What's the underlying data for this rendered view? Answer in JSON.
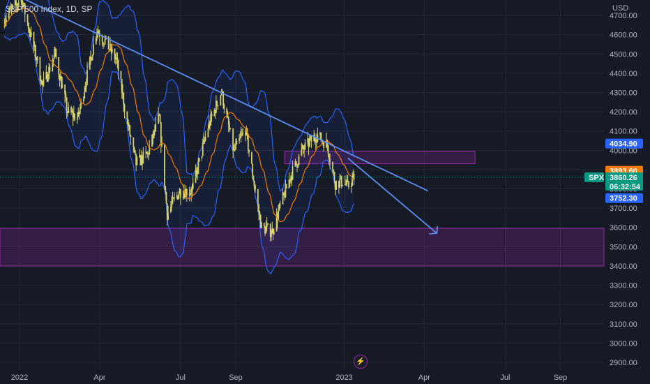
{
  "chart_data": {
    "type": "candlestick",
    "title": "S&P 500 Index, 1D, SP",
    "currency": "USD",
    "symbol": "SPX",
    "price_axis": {
      "ticks": [
        "4700.00",
        "4600.00",
        "4500.00",
        "4400.00",
        "4300.00",
        "4200.00",
        "4100.00",
        "4000.00",
        "3900.00",
        "3800.00",
        "3700.00",
        "3600.00",
        "3500.00",
        "3400.00",
        "3300.00",
        "3200.00",
        "3100.00",
        "3000.00",
        "2900.00"
      ],
      "range": [
        2860,
        4780
      ]
    },
    "time_axis": {
      "ticks": [
        "2022",
        "Apr",
        "Jul",
        "Sep",
        "2023",
        "Apr",
        "Jul",
        "Sep"
      ],
      "tick_dates": [
        "2022-01-01",
        "2022-04-01",
        "2022-07-01",
        "2022-09-01",
        "2023-01-01",
        "2023-04-01",
        "2023-07-01",
        "2023-09-01"
      ],
      "range": [
        "2021-12-10",
        "2023-10-20"
      ]
    },
    "price_series": [
      [
        "2021-12-15",
        4680
      ],
      [
        "2022-01-03",
        4790
      ],
      [
        "2022-01-20",
        4480
      ],
      [
        "2022-01-27",
        4330
      ],
      [
        "2022-02-10",
        4500
      ],
      [
        "2022-02-24",
        4200
      ],
      [
        "2022-03-08",
        4170
      ],
      [
        "2022-03-29",
        4630
      ],
      [
        "2022-04-20",
        4470
      ],
      [
        "2022-05-02",
        4150
      ],
      [
        "2022-05-12",
        3930
      ],
      [
        "2022-05-25",
        3980
      ],
      [
        "2022-06-07",
        4170
      ],
      [
        "2022-06-16",
        3670
      ],
      [
        "2022-06-30",
        3790
      ],
      [
        "2022-07-14",
        3790
      ],
      [
        "2022-08-01",
        4120
      ],
      [
        "2022-08-16",
        4305
      ],
      [
        "2022-08-30",
        3990
      ],
      [
        "2022-09-12",
        4110
      ],
      [
        "2022-09-30",
        3600
      ],
      [
        "2022-10-12",
        3580
      ],
      [
        "2022-11-01",
        3860
      ],
      [
        "2022-11-15",
        4000
      ],
      [
        "2022-12-01",
        4080
      ],
      [
        "2022-12-13",
        4030
      ],
      [
        "2022-12-22",
        3830
      ],
      [
        "2022-12-30",
        3840
      ],
      [
        "2023-01-05",
        3810
      ],
      [
        "2023-01-12",
        3860
      ]
    ],
    "price_labels": {
      "upper_band": "4034.90",
      "moving_average": "3893.60",
      "last_price": "3860.26",
      "countdown": "06:32:54",
      "lower_band": "3752.30"
    },
    "trendline": {
      "from": [
        "2022-01-04",
        4790
      ],
      "to": [
        "2023-04-05",
        3790
      ]
    },
    "projection_arrow": {
      "from": [
        "2023-01-05",
        3960
      ],
      "to": [
        "2023-04-15",
        3570
      ]
    },
    "zones": [
      {
        "from": "2022-10-26",
        "to": "2023-05-28",
        "low": 3930,
        "high": 3995
      },
      {
        "from": "2021-12-10",
        "to": "2023-10-20",
        "low": 3400,
        "high": 3595
      }
    ],
    "colors": {
      "candle": "#d4d06a",
      "ma": "#f57c00",
      "bands": "#2962ff",
      "trend": "#5b8def",
      "zone": "#9c27b0",
      "last": "#089981",
      "upper_tag": "#2962ff",
      "ma_tag": "#f57c00"
    }
  },
  "ui": {
    "bolt_icon": "lightning-icon"
  }
}
